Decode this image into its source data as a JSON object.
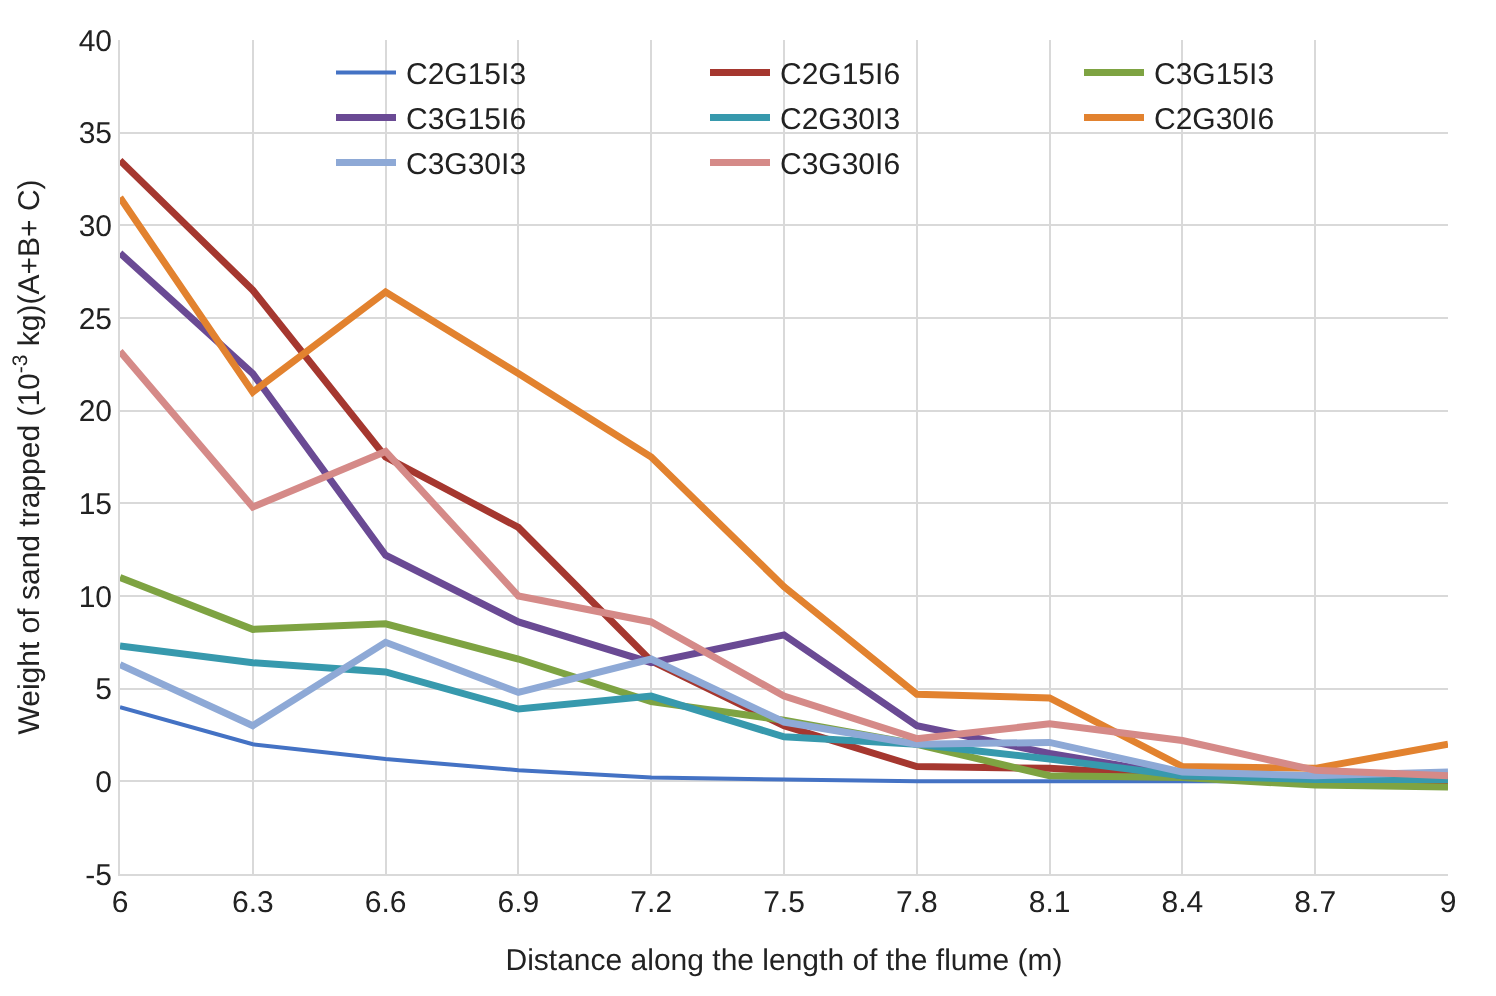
{
  "chart_data": {
    "type": "line",
    "xlabel": "Distance along the length of the flume (m)",
    "ylabel": "Weight of sand trapped (10$^{-3}$ kg)(A+B+ C)",
    "x": [
      6,
      6.3,
      6.6,
      6.9,
      7.2,
      7.5,
      7.8,
      8.1,
      8.4,
      8.7,
      9
    ],
    "xlim": [
      6,
      9
    ],
    "xticks": [
      6,
      6.3,
      6.6,
      6.9,
      7.2,
      7.5,
      7.8,
      8.1,
      8.4,
      8.7,
      9
    ],
    "ylim": [
      -5,
      40
    ],
    "yticks": [
      -5,
      0,
      5,
      10,
      15,
      20,
      25,
      30,
      35,
      40
    ],
    "grid": true,
    "legend": "top right",
    "marker": "none",
    "line_style": "solid",
    "series": [
      {
        "name": "C2G15I3",
        "color": "#4472c4",
        "values": [
          4,
          2,
          1.2,
          0.6,
          0.2,
          0.1,
          0,
          0,
          0,
          0,
          0
        ]
      },
      {
        "name": "C2G15I6",
        "color": "#a5372f",
        "values": [
          33.5,
          26.5,
          17.5,
          13.7,
          6.5,
          3,
          0.8,
          0.7,
          0.3,
          0.2,
          0
        ]
      },
      {
        "name": "C3G15I3",
        "color": "#7ea342",
        "values": [
          11,
          8.2,
          8.5,
          6.6,
          4.3,
          3.3,
          2,
          0.3,
          0.2,
          -0.2,
          -0.3
        ]
      },
      {
        "name": "C3G15I6",
        "color": "#6a4a94",
        "values": [
          28.5,
          22,
          12.2,
          8.6,
          6.4,
          7.9,
          3,
          1.5,
          0.3,
          0.2,
          0.1
        ]
      },
      {
        "name": "C2G30I3",
        "color": "#3799ad",
        "values": [
          7.3,
          6.4,
          5.9,
          3.9,
          4.6,
          2.4,
          2,
          1.2,
          0.3,
          0.1,
          0.1
        ]
      },
      {
        "name": "C2G30I6",
        "color": "#e2822f",
        "values": [
          31.5,
          21,
          26.4,
          22,
          17.5,
          10.5,
          4.7,
          4.5,
          0.8,
          0.7,
          2
        ]
      },
      {
        "name": "C3G30I3",
        "color": "#8ea9d6",
        "values": [
          6.3,
          3,
          7.5,
          4.8,
          6.6,
          3.2,
          2,
          2.1,
          0.5,
          0.3,
          0.5
        ]
      },
      {
        "name": "C3G30I6",
        "color": "#d58a88",
        "values": [
          23.2,
          14.8,
          17.8,
          10,
          8.6,
          4.6,
          2.3,
          3.1,
          2.2,
          0.6,
          0.3
        ]
      }
    ]
  }
}
